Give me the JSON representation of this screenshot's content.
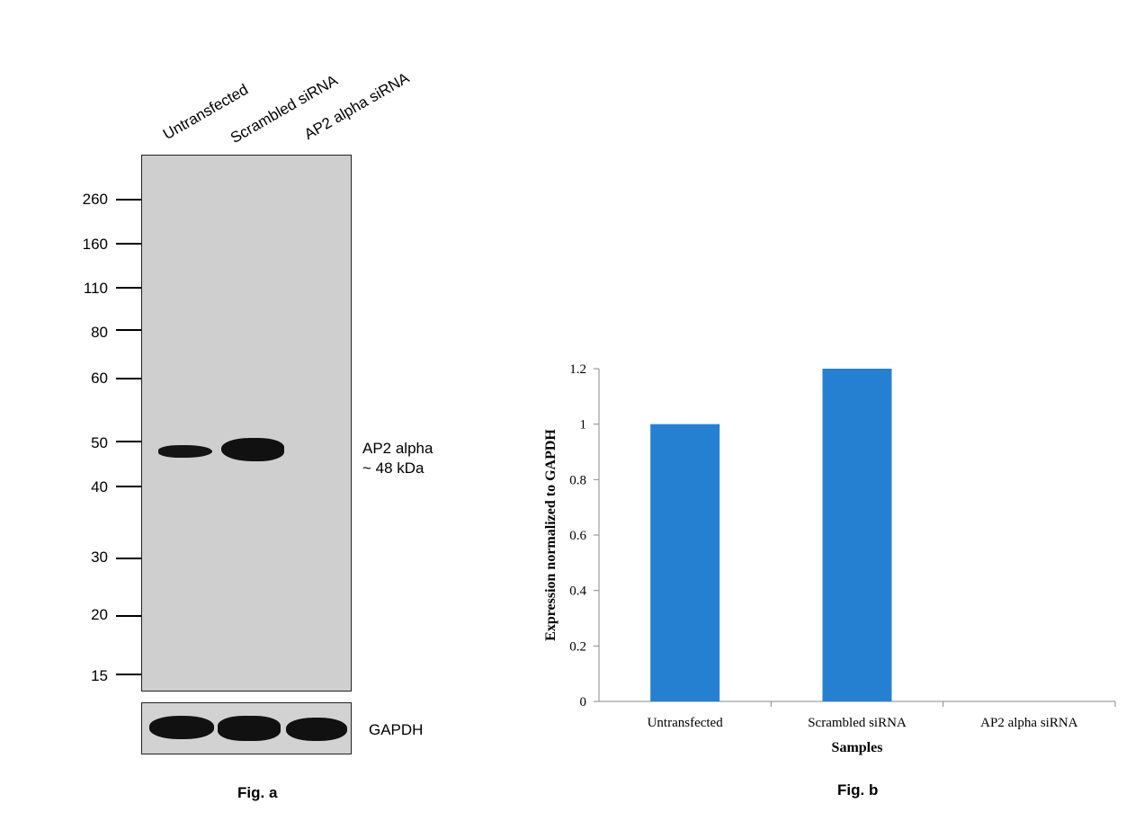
{
  "figure_a": {
    "lanes": [
      "Untransfected",
      "Scrambled siRNA",
      "AP2 alpha siRNA"
    ],
    "mw_markers": [
      "260",
      "160",
      "110",
      "80",
      "60",
      "50",
      "40",
      "30",
      "20",
      "15"
    ],
    "band_label_line1": "AP2 alpha",
    "band_label_line2": "~ 48 kDa",
    "loading_control": "GAPDH",
    "caption": "Fig. a"
  },
  "chart_data": {
    "type": "bar",
    "categories": [
      "Untransfected",
      "Scrambled siRNA",
      "AP2 alpha siRNA"
    ],
    "values": [
      1.0,
      1.2,
      0.0
    ],
    "title": "",
    "xlabel": "Samples",
    "ylabel": "Expression normalized to GAPDH",
    "ylim": [
      0,
      1.2
    ],
    "yticks": [
      "0",
      "0.2",
      "0.4",
      "0.6",
      "0.8",
      "1",
      "1.2"
    ],
    "bar_color": "#2680d2",
    "grid": false,
    "legend": "none"
  },
  "figure_b": {
    "caption": "Fig. b"
  }
}
